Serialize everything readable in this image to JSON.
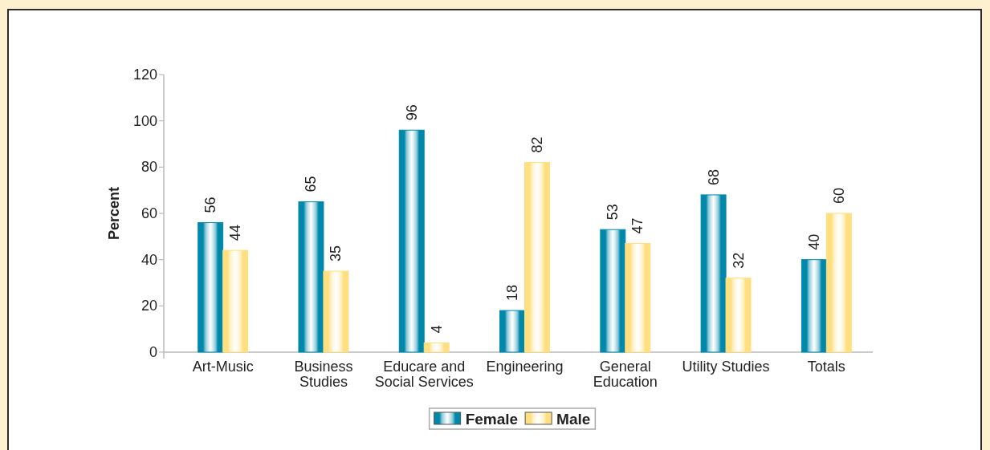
{
  "chart_data": {
    "type": "bar",
    "categories": [
      "Art-Music",
      "Business Studies",
      "Educare and Social Services",
      "Engineering",
      "General Education",
      "Utility Studies",
      "Totals"
    ],
    "series": [
      {
        "name": "Female",
        "color": "#0088aa",
        "values": [
          56,
          65,
          96,
          18,
          53,
          68,
          40
        ]
      },
      {
        "name": "Male",
        "color": "#ffdf80",
        "values": [
          44,
          35,
          4,
          82,
          47,
          32,
          60
        ]
      }
    ],
    "ylabel": "Percent",
    "ylim": [
      0,
      120
    ],
    "yticks": [
      0,
      20,
      40,
      60,
      80,
      100,
      120
    ],
    "data_labels": true,
    "legend": "bottom"
  }
}
